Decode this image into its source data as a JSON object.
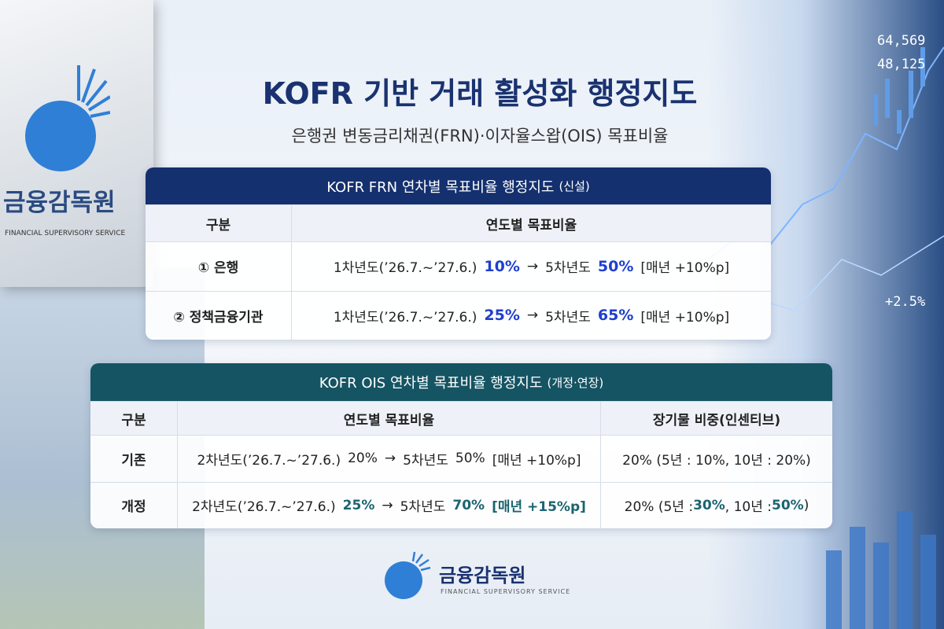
{
  "header": {
    "title": "KOFR 기반 거래 활성화 행정지도",
    "subtitle": "은행권 변동금리채권(FRN)·이자율스왑(OIS) 목표비율"
  },
  "sign": {
    "name": "금융감독원",
    "english": "FINANCIAL SUPERVISORY SERVICE"
  },
  "ticker": [
    "64,569",
    "48,125",
    "+2.5%"
  ],
  "frn_table": {
    "title": "KOFR FRN 연차별 목표비율 행정지도",
    "note": "(신설)",
    "columns": [
      "구분",
      "연도별 목표비율"
    ],
    "rows": [
      {
        "label": "① 은행",
        "parts": [
          "1차년도(’26.7.~’27.6.)",
          "10%",
          "→",
          "5차년도",
          "50%",
          "[매년 +10%p]"
        ]
      },
      {
        "label": "② 정책금융기관",
        "parts": [
          "1차년도(’26.7.~’27.6.)",
          "25%",
          "→",
          "5차년도",
          "65%",
          "[매년 +10%p]"
        ]
      }
    ]
  },
  "ois_table": {
    "title": "KOFR OIS 연차별 목표비율 행정지도",
    "note": "(개정·연장)",
    "columns": [
      "구분",
      "연도별 목표비율",
      "장기물 비중(인센티브)"
    ],
    "rows": [
      {
        "label": "기존",
        "parts": [
          "2차년도(’26.7.~’27.6.)",
          "20%",
          "→",
          "5차년도",
          "50%",
          "[매년 +10%p]"
        ],
        "weight": [
          "20% (5년 : 10%, 10년 : 20%)"
        ]
      },
      {
        "label": "개정",
        "parts": [
          "2차년도(’26.7.~’27.6.)",
          "25%",
          "→",
          "5차년도",
          "70%",
          "[매년 +15%p]"
        ],
        "weight": [
          "20% (5년 : ",
          "30%",
          ", 10년 : ",
          "50%",
          ")"
        ]
      }
    ]
  },
  "footer": {
    "name": "금융감독원",
    "english": "FINANCIAL SUPERVISORY SERVICE"
  }
}
